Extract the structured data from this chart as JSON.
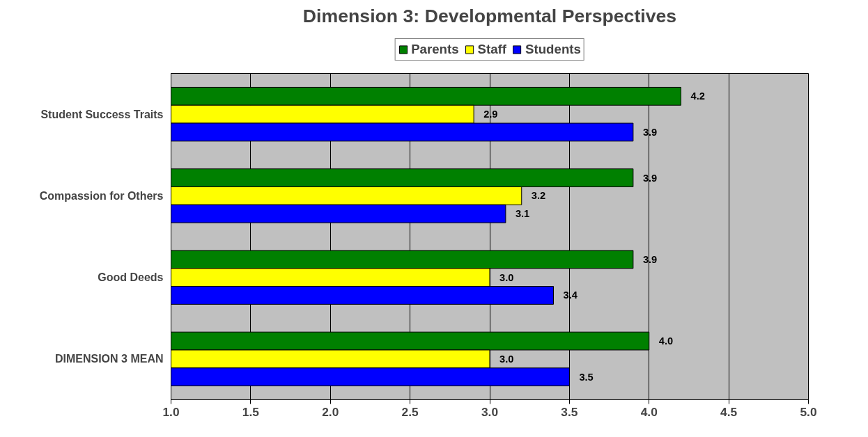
{
  "chart_data": {
    "type": "bar",
    "orientation": "horizontal",
    "title": "Dimension 3: Developmental Perspectives",
    "categories": [
      "Student Success Traits",
      "Compassion for Others",
      "Good Deeds",
      "DIMENSION 3 MEAN"
    ],
    "series": [
      {
        "name": "Parents",
        "color": "#008000",
        "values": [
          4.2,
          3.9,
          3.9,
          4.0
        ],
        "value_labels": [
          "4.2",
          "3.9",
          "3.9",
          "4.0"
        ]
      },
      {
        "name": "Staff",
        "color": "#ffff00",
        "values": [
          2.9,
          3.2,
          3.0,
          3.0
        ],
        "value_labels": [
          "2.9",
          "3.2",
          "3.0",
          "3.0"
        ]
      },
      {
        "name": "Students",
        "color": "#0000ff",
        "values": [
          3.9,
          3.1,
          3.4,
          3.5
        ],
        "value_labels": [
          "3.9",
          "3.1",
          "3.4",
          "3.5"
        ]
      }
    ],
    "xlim": [
      1,
      5
    ],
    "xticks": [
      {
        "value": 1,
        "label": "1.0"
      },
      1.5,
      {
        "value": 2,
        "label": "2.0"
      },
      2.5,
      {
        "value": 3,
        "label": "3.0"
      },
      3.5,
      {
        "value": 4,
        "label": "4.0"
      },
      4.5,
      {
        "value": 5,
        "label": "5.0"
      }
    ],
    "grid": "x",
    "legend": "top"
  }
}
